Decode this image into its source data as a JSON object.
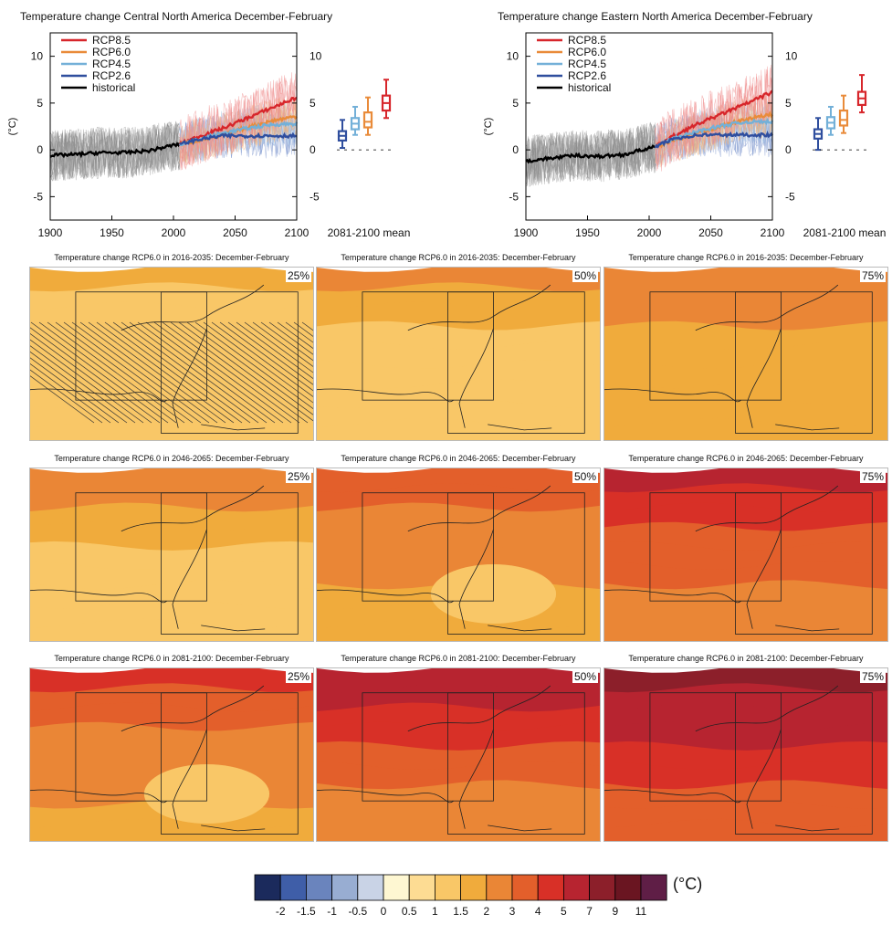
{
  "ts_panels": [
    {
      "title": "Temperature change Central North America December-February",
      "ylabel": "(°C)",
      "xlim": [
        1900,
        2100
      ],
      "ylim": [
        -7.5,
        12.5
      ],
      "yticks": [
        -5,
        0,
        5,
        10
      ],
      "xticks": [
        1900,
        1950,
        2000,
        2050,
        2100
      ],
      "boxplot_label": "2081-2100 mean",
      "legend": [
        "RCP8.5",
        "RCP6.0",
        "RCP4.5",
        "RCP2.6",
        "historical"
      ],
      "chart_data": {
        "type": "line",
        "x": [
          1900,
          1920,
          1940,
          1960,
          1980,
          2000,
          2005,
          2020,
          2040,
          2060,
          2080,
          2100
        ],
        "series": [
          {
            "name": "historical",
            "values": [
              -0.6,
              -0.5,
              -0.3,
              -0.3,
              -0.1,
              0.5,
              0.6,
              null,
              null,
              null,
              null,
              null
            ]
          },
          {
            "name": "RCP8.5",
            "values": [
              null,
              null,
              null,
              null,
              null,
              null,
              0.6,
              1.4,
              2.3,
              3.4,
              4.5,
              5.6
            ]
          },
          {
            "name": "RCP6.0",
            "values": [
              null,
              null,
              null,
              null,
              null,
              null,
              0.6,
              1.0,
              1.6,
              2.4,
              3.1,
              3.6
            ]
          },
          {
            "name": "RCP4.5",
            "values": [
              null,
              null,
              null,
              null,
              null,
              null,
              0.6,
              1.1,
              1.8,
              2.3,
              2.7,
              2.8
            ]
          },
          {
            "name": "RCP2.6",
            "values": [
              null,
              null,
              null,
              null,
              null,
              null,
              0.6,
              1.1,
              1.5,
              1.5,
              1.5,
              1.5
            ]
          }
        ],
        "boxplots": [
          {
            "name": "RCP2.6",
            "min": 0.2,
            "q1": 1.0,
            "median": 1.5,
            "q3": 2.0,
            "max": 3.2
          },
          {
            "name": "RCP4.5",
            "min": 1.6,
            "q1": 2.2,
            "median": 2.8,
            "q3": 3.4,
            "max": 4.6
          },
          {
            "name": "RCP6.0",
            "min": 1.6,
            "q1": 2.4,
            "median": 3.0,
            "q3": 4.0,
            "max": 5.6
          },
          {
            "name": "RCP8.5",
            "min": 3.4,
            "q1": 4.2,
            "median": 5.0,
            "q3": 5.8,
            "max": 7.5
          }
        ]
      }
    },
    {
      "title": "Temperature change Eastern North America December-February",
      "ylabel": "(°C)",
      "xlim": [
        1900,
        2100
      ],
      "ylim": [
        -7.5,
        12.5
      ],
      "yticks": [
        -5,
        0,
        5,
        10
      ],
      "xticks": [
        1900,
        1950,
        2000,
        2050,
        2100
      ],
      "boxplot_label": "2081-2100 mean",
      "legend": [
        "RCP8.5",
        "RCP6.0",
        "RCP4.5",
        "RCP2.6",
        "historical"
      ],
      "chart_data": {
        "type": "line",
        "x": [
          1900,
          1920,
          1940,
          1960,
          1980,
          2000,
          2005,
          2020,
          2040,
          2060,
          2080,
          2100
        ],
        "series": [
          {
            "name": "historical",
            "values": [
              -1.2,
              -0.9,
              -0.6,
              -0.7,
              -0.5,
              0.2,
              0.3,
              null,
              null,
              null,
              null,
              null
            ]
          },
          {
            "name": "RCP8.5",
            "values": [
              null,
              null,
              null,
              null,
              null,
              null,
              0.3,
              1.5,
              2.8,
              3.9,
              5.0,
              6.2
            ]
          },
          {
            "name": "RCP6.0",
            "values": [
              null,
              null,
              null,
              null,
              null,
              null,
              0.3,
              1.0,
              1.8,
              2.6,
              3.3,
              3.8
            ]
          },
          {
            "name": "RCP4.5",
            "values": [
              null,
              null,
              null,
              null,
              null,
              null,
              0.3,
              1.2,
              2.0,
              2.6,
              3.0,
              3.0
            ]
          },
          {
            "name": "RCP2.6",
            "values": [
              null,
              null,
              null,
              null,
              null,
              null,
              0.3,
              1.2,
              1.6,
              1.6,
              1.6,
              1.6
            ]
          }
        ],
        "boxplots": [
          {
            "name": "RCP2.6",
            "min": 0.0,
            "q1": 1.2,
            "median": 1.7,
            "q3": 2.2,
            "max": 3.4
          },
          {
            "name": "RCP4.5",
            "min": 1.6,
            "q1": 2.3,
            "median": 2.9,
            "q3": 3.5,
            "max": 4.6
          },
          {
            "name": "RCP6.0",
            "min": 1.8,
            "q1": 2.6,
            "median": 3.2,
            "q3": 4.2,
            "max": 5.8
          },
          {
            "name": "RCP8.5",
            "min": 4.0,
            "q1": 4.8,
            "median": 5.5,
            "q3": 6.2,
            "max": 8.0
          }
        ]
      }
    }
  ],
  "series_colors": {
    "RCP8.5": "#d7262b",
    "RCP6.0": "#e98b3a",
    "RCP4.5": "#73b0d8",
    "RCP2.6": "#2f4e9e",
    "historical": "#000000",
    "historical_spread": "#8c8c8c"
  },
  "maps": [
    {
      "title": "Temperature change RCP6.0 in 2016-2035: December-February",
      "pct": "25%",
      "base": 1,
      "north": 0.6,
      "hatch": true,
      "patch": 0
    },
    {
      "title": "Temperature change RCP6.0 in 2016-2035: December-February",
      "pct": "50%",
      "base": 1,
      "north": 1,
      "hatch": false,
      "patch": 0
    },
    {
      "title": "Temperature change RCP6.0 in 2016-2035: December-February",
      "pct": "75%",
      "base": 1.5,
      "north": 0.9,
      "hatch": false,
      "patch": 0
    },
    {
      "title": "Temperature change RCP6.0 in 2046-2065: December-February",
      "pct": "25%",
      "base": 1,
      "north": 1.4,
      "hatch": false,
      "patch": 0
    },
    {
      "title": "Temperature change RCP6.0 in 2046-2065: December-February",
      "pct": "50%",
      "base": 1.6,
      "north": 2.0,
      "hatch": false,
      "patch": -0.5
    },
    {
      "title": "Temperature change RCP6.0 in 2046-2065: December-February",
      "pct": "75%",
      "base": 2.5,
      "north": 2.5,
      "hatch": false,
      "patch": 0
    },
    {
      "title": "Temperature change RCP6.0 in 2081-2100: December-February",
      "pct": "25%",
      "base": 1.9,
      "north": 2.3,
      "hatch": false,
      "patch": -0.5
    },
    {
      "title": "Temperature change RCP6.0 in 2081-2100: December-February",
      "pct": "50%",
      "base": 2.6,
      "north": 3.2,
      "hatch": false,
      "patch": 0
    },
    {
      "title": "Temperature change RCP6.0 in 2081-2100: December-February",
      "pct": "75%",
      "base": 3.5,
      "north": 4.2,
      "hatch": false,
      "patch": 0
    }
  ],
  "colorbar": {
    "unit": "(°C)",
    "labels": [
      "-2",
      "-1.5",
      "-1",
      "-0.5",
      "0",
      "0.5",
      "1",
      "1.5",
      "2",
      "3",
      "4",
      "5",
      "7",
      "9",
      "11"
    ],
    "colors": [
      "#1b2a5c",
      "#3f5ea8",
      "#6a84bd",
      "#98add2",
      "#c9d3e6",
      "#fef7d2",
      "#fddc93",
      "#f9c767",
      "#f0ab3c",
      "#ea8636",
      "#e35f2b",
      "#d83027",
      "#b72430",
      "#8c1f2a",
      "#6a1521",
      "#5f1e46"
    ]
  }
}
